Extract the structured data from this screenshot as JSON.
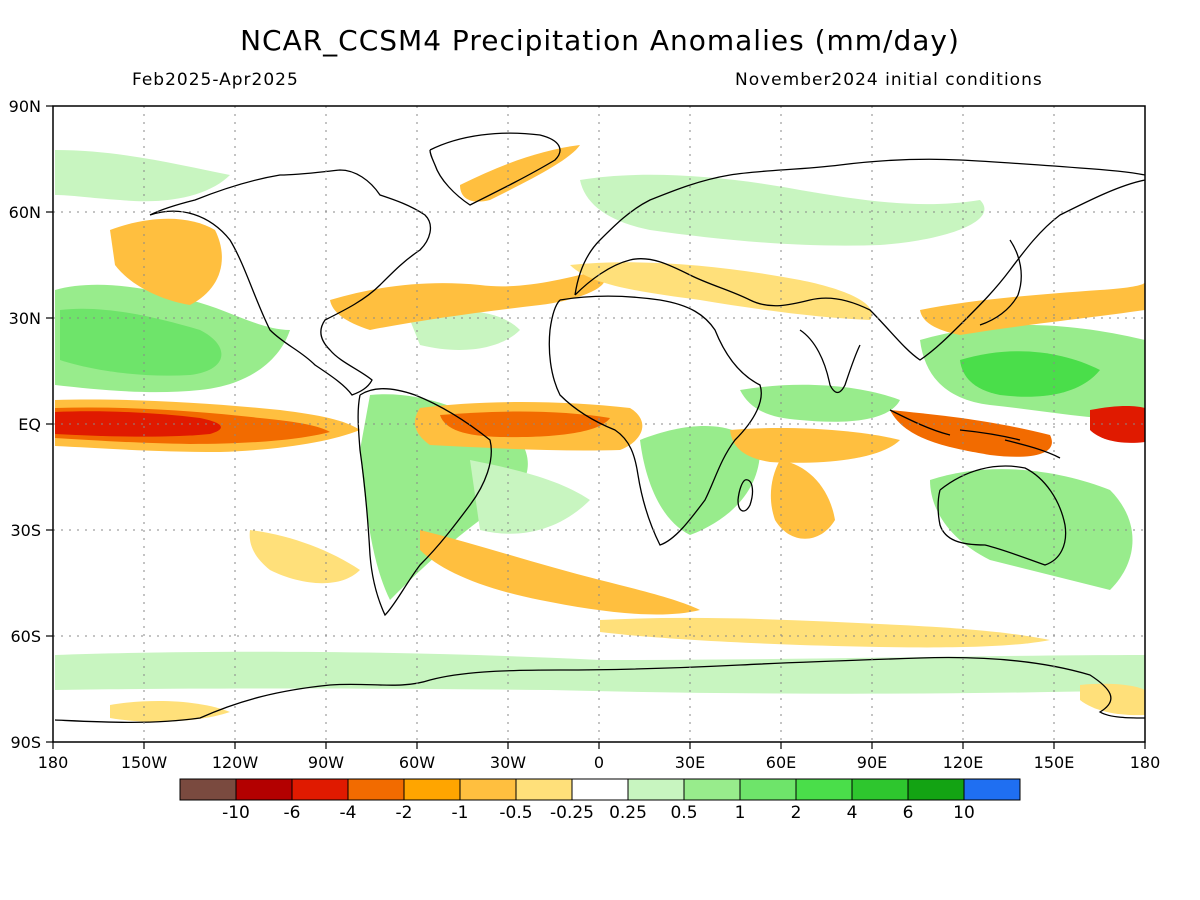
{
  "title": "NCAR_CCSM4 Precipitation Anomalies (mm/day)",
  "subtitle_left": "Feb2025-Apr2025",
  "subtitle_right": "November2024 initial conditions",
  "lat_ticks": [
    "90N",
    "60N",
    "30N",
    "EQ",
    "30S",
    "60S",
    "90S"
  ],
  "lon_ticks": [
    "180",
    "150W",
    "120W",
    "90W",
    "60W",
    "30W",
    "0",
    "30E",
    "60E",
    "90E",
    "120E",
    "150E",
    "180"
  ],
  "colorbar": {
    "colors": [
      "#7a4a3f",
      "#b30000",
      "#e01a00",
      "#f26b00",
      "#ffa500",
      "#ffbf3f",
      "#ffe07a",
      "#ffffff",
      "#c8f5c0",
      "#98ec8c",
      "#6ee46a",
      "#4ade4a",
      "#2ec62e",
      "#13a313",
      "#1f6ff2"
    ],
    "labels": [
      "-10",
      "-6",
      "-4",
      "-2",
      "-1",
      "-0.5",
      "-0.25",
      "0.25",
      "0.5",
      "1",
      "2",
      "4",
      "6",
      "10"
    ]
  },
  "legend_colors": {
    "dry_strong": "#b30000",
    "dry": "#f26b00",
    "dry_weak": "#ffe07a",
    "wet_weak": "#c8f5c0",
    "wet": "#6ee46a",
    "wet_strong": "#2ec62e"
  }
}
